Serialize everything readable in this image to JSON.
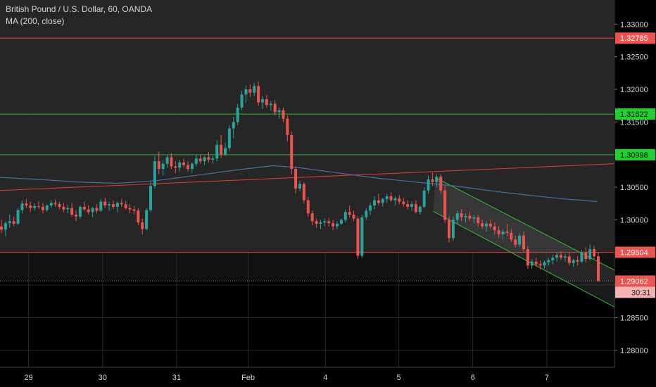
{
  "header": {
    "title": "British Pound / U.S. Dollar, 60, OANDA",
    "indicator": "MA (200, close)"
  },
  "colors": {
    "background": "#000000",
    "grid": "#2a2a2a",
    "up": "#26a69a",
    "down": "#ef5350",
    "red_line": "#e53935",
    "green_line": "#2ebd2e",
    "ma": "#4a6fa5",
    "axis_text": "#d1d4dc",
    "label_red_bg": "#ef5350",
    "label_green_bg": "#1fd12f"
  },
  "chart_data": {
    "type": "candlestick",
    "symbol": "British Pound / U.S. Dollar, 60, OANDA",
    "y_ticks": [
      "1.33000",
      "1.32500",
      "1.32000",
      "1.31500",
      "1.31000",
      "1.30500",
      "1.30000",
      "1.29500",
      "1.29000",
      "1.28500",
      "1.28000"
    ],
    "y_tick_values": [
      1.33,
      1.325,
      1.32,
      1.315,
      1.31,
      1.305,
      1.3,
      1.295,
      1.29,
      1.285,
      1.28
    ],
    "ylim": [
      1.2774,
      1.3337
    ],
    "x_ticks": [
      {
        "label": "29",
        "t": 44
      },
      {
        "label": "30",
        "t": 158
      },
      {
        "label": "31",
        "t": 272
      },
      {
        "label": "Feb",
        "t": 382
      },
      {
        "label": "4",
        "t": 501
      },
      {
        "label": "5",
        "t": 614
      },
      {
        "label": "6",
        "t": 728
      },
      {
        "label": "7",
        "t": 842
      }
    ],
    "xlim": [
      0,
      945
    ],
    "horizontal_lines": [
      {
        "value": 1.32785,
        "label": "1.32785",
        "color": "red"
      },
      {
        "value": 1.31622,
        "label": "1.31622",
        "color": "green"
      },
      {
        "value": 1.30998,
        "label": "1.30998",
        "color": "green"
      },
      {
        "value": 1.29504,
        "label": "1.29504",
        "color": "red"
      }
    ],
    "current_price": {
      "value": 1.29062,
      "label": "1.29062",
      "countdown": "30:31"
    },
    "trendline": {
      "color": "red",
      "points": [
        [
          0,
          1.3045
        ],
        [
          945,
          1.3086
        ]
      ]
    },
    "channel": {
      "color": "green",
      "upper": [
        [
          670,
          1.3065
        ],
        [
          981,
          1.2905
        ]
      ],
      "lower": [
        [
          667,
          1.3013
        ],
        [
          981,
          1.2848
        ]
      ]
    },
    "ma200": [
      [
        0,
        1.3065
      ],
      [
        60,
        1.3062
      ],
      [
        120,
        1.3058
      ],
      [
        180,
        1.3056
      ],
      [
        240,
        1.306
      ],
      [
        300,
        1.3068
      ],
      [
        360,
        1.3076
      ],
      [
        420,
        1.3083
      ],
      [
        460,
        1.308
      ],
      [
        520,
        1.3072
      ],
      [
        580,
        1.3064
      ],
      [
        640,
        1.3058
      ],
      [
        700,
        1.3052
      ],
      [
        760,
        1.3044
      ],
      [
        820,
        1.3037
      ],
      [
        870,
        1.3032
      ],
      [
        920,
        1.3028
      ]
    ],
    "ohlc": [
      [
        1.299,
        1.3,
        1.298,
        1.2985
      ],
      [
        1.2985,
        1.2998,
        1.2975,
        1.2995
      ],
      [
        1.2995,
        1.3008,
        1.2988,
        1.2998
      ],
      [
        1.2998,
        1.3005,
        1.299,
        1.2994
      ],
      [
        1.2994,
        1.3018,
        1.2992,
        1.3015
      ],
      [
        1.3015,
        1.303,
        1.301,
        1.3025
      ],
      [
        1.3025,
        1.3032,
        1.3018,
        1.3022
      ],
      [
        1.3022,
        1.3028,
        1.3012,
        1.3018
      ],
      [
        1.3018,
        1.3025,
        1.3014,
        1.3021
      ],
      [
        1.3021,
        1.3029,
        1.3017,
        1.302
      ],
      [
        1.302,
        1.3026,
        1.301,
        1.3015
      ],
      [
        1.3015,
        1.3024,
        1.3012,
        1.3022
      ],
      [
        1.3022,
        1.303,
        1.3018,
        1.3026
      ],
      [
        1.3026,
        1.3031,
        1.302,
        1.3024
      ],
      [
        1.3024,
        1.3028,
        1.3016,
        1.302
      ],
      [
        1.302,
        1.3026,
        1.3012,
        1.3016
      ],
      [
        1.3016,
        1.3023,
        1.301,
        1.3018
      ],
      [
        1.3018,
        1.3026,
        1.3005,
        1.3008
      ],
      [
        1.3008,
        1.3015,
        1.2998,
        1.3005
      ],
      [
        1.3005,
        1.3022,
        1.3002,
        1.302
      ],
      [
        1.302,
        1.3028,
        1.3014,
        1.3016
      ],
      [
        1.3016,
        1.3022,
        1.3008,
        1.3012
      ],
      [
        1.3012,
        1.302,
        1.3004,
        1.3018
      ],
      [
        1.3018,
        1.3024,
        1.301,
        1.3014
      ],
      [
        1.3014,
        1.3032,
        1.3012,
        1.3028
      ],
      [
        1.3028,
        1.3034,
        1.3018,
        1.3022
      ],
      [
        1.3022,
        1.3028,
        1.3014,
        1.3024
      ],
      [
        1.3024,
        1.303,
        1.3016,
        1.302
      ],
      [
        1.302,
        1.3028,
        1.3012,
        1.3026
      ],
      [
        1.3026,
        1.3032,
        1.302,
        1.3024
      ],
      [
        1.3024,
        1.3029,
        1.3016,
        1.3018
      ],
      [
        1.3018,
        1.3024,
        1.301,
        1.3016
      ],
      [
        1.3016,
        1.3022,
        1.3008,
        1.3014
      ],
      [
        1.3014,
        1.3018,
        1.2992,
        1.2996
      ],
      [
        1.2996,
        1.3002,
        1.2978,
        1.2986
      ],
      [
        1.2986,
        1.3018,
        1.2984,
        1.3015
      ],
      [
        1.3015,
        1.3058,
        1.3012,
        1.3052
      ],
      [
        1.3052,
        1.3098,
        1.3048,
        1.309
      ],
      [
        1.309,
        1.3105,
        1.307,
        1.3078
      ],
      [
        1.3078,
        1.3092,
        1.3068,
        1.3086
      ],
      [
        1.3086,
        1.31,
        1.308,
        1.3096
      ],
      [
        1.3096,
        1.3102,
        1.3078,
        1.3082
      ],
      [
        1.3082,
        1.309,
        1.3072,
        1.308
      ],
      [
        1.308,
        1.3092,
        1.3074,
        1.3088
      ],
      [
        1.3088,
        1.3094,
        1.308,
        1.3084
      ],
      [
        1.3084,
        1.309,
        1.3074,
        1.3078
      ],
      [
        1.3078,
        1.3088,
        1.3072,
        1.3086
      ],
      [
        1.3086,
        1.31,
        1.3082,
        1.3094
      ],
      [
        1.3094,
        1.31,
        1.3086,
        1.309
      ],
      [
        1.309,
        1.3098,
        1.3084,
        1.3096
      ],
      [
        1.3096,
        1.3104,
        1.3088,
        1.3092
      ],
      [
        1.3092,
        1.3098,
        1.3086,
        1.3094
      ],
      [
        1.3094,
        1.3122,
        1.309,
        1.3115
      ],
      [
        1.3115,
        1.313,
        1.3095,
        1.31
      ],
      [
        1.31,
        1.3118,
        1.3098,
        1.311
      ],
      [
        1.311,
        1.3145,
        1.3105,
        1.314
      ],
      [
        1.314,
        1.3158,
        1.3125,
        1.315
      ],
      [
        1.315,
        1.3178,
        1.3145,
        1.3172
      ],
      [
        1.3172,
        1.3198,
        1.3168,
        1.3192
      ],
      [
        1.3192,
        1.3206,
        1.318,
        1.32
      ],
      [
        1.32,
        1.3208,
        1.3188,
        1.3195
      ],
      [
        1.3195,
        1.321,
        1.319,
        1.3205
      ],
      [
        1.3205,
        1.3212,
        1.3175,
        1.318
      ],
      [
        1.318,
        1.319,
        1.317,
        1.3185
      ],
      [
        1.3185,
        1.3192,
        1.3172,
        1.3176
      ],
      [
        1.3176,
        1.3182,
        1.3168,
        1.3178
      ],
      [
        1.3178,
        1.3184,
        1.316,
        1.3165
      ],
      [
        1.3165,
        1.3172,
        1.3155,
        1.3168
      ],
      [
        1.3168,
        1.3172,
        1.315,
        1.3155
      ],
      [
        1.3155,
        1.316,
        1.312,
        1.313
      ],
      [
        1.313,
        1.3135,
        1.307,
        1.3078
      ],
      [
        1.3078,
        1.3082,
        1.304,
        1.3048
      ],
      [
        1.3048,
        1.306,
        1.3044,
        1.3055
      ],
      [
        1.3055,
        1.3058,
        1.3025,
        1.303
      ],
      [
        1.303,
        1.3035,
        1.3005,
        1.301
      ],
      [
        1.301,
        1.3014,
        1.2992,
        1.2998
      ],
      [
        1.2998,
        1.3002,
        1.2988,
        1.2994
      ],
      [
        1.2994,
        1.3,
        1.2986,
        1.2996
      ],
      [
        1.2996,
        1.3002,
        1.299,
        1.2998
      ],
      [
        1.2998,
        1.3003,
        1.299,
        1.2995
      ],
      [
        1.2995,
        1.3,
        1.2984,
        1.299
      ],
      [
        1.299,
        1.2998,
        1.2986,
        1.2994
      ],
      [
        1.2994,
        1.3002,
        1.2992,
        1.3
      ],
      [
        1.3,
        1.3016,
        1.2996,
        1.3012
      ],
      [
        1.3012,
        1.3022,
        1.3004,
        1.3008
      ],
      [
        1.3008,
        1.3014,
        1.2998,
        1.3002
      ],
      [
        1.3002,
        1.3006,
        1.294,
        1.2945
      ],
      [
        1.2945,
        1.3008,
        1.2942,
        1.3004
      ],
      [
        1.3004,
        1.3018,
        1.3,
        1.3014
      ],
      [
        1.3014,
        1.3026,
        1.3008,
        1.3022
      ],
      [
        1.3022,
        1.3036,
        1.3016,
        1.303
      ],
      [
        1.303,
        1.304,
        1.3022,
        1.3026
      ],
      [
        1.3026,
        1.3034,
        1.302,
        1.3032
      ],
      [
        1.3032,
        1.304,
        1.3026,
        1.3036
      ],
      [
        1.3036,
        1.3042,
        1.3028,
        1.303
      ],
      [
        1.303,
        1.3036,
        1.3022,
        1.3033
      ],
      [
        1.3033,
        1.3038,
        1.3024,
        1.3028
      ],
      [
        1.3028,
        1.3034,
        1.302,
        1.3024
      ],
      [
        1.3024,
        1.303,
        1.3016,
        1.302
      ],
      [
        1.302,
        1.3028,
        1.3014,
        1.3024
      ],
      [
        1.3024,
        1.303,
        1.301,
        1.3012
      ],
      [
        1.3012,
        1.3022,
        1.3008,
        1.302
      ],
      [
        1.302,
        1.305,
        1.3018,
        1.3045
      ],
      [
        1.3045,
        1.3068,
        1.304,
        1.3062
      ],
      [
        1.3062,
        1.3072,
        1.3052,
        1.3058
      ],
      [
        1.3058,
        1.307,
        1.305,
        1.3066
      ],
      [
        1.3066,
        1.307,
        1.304,
        1.3045
      ],
      [
        1.3045,
        1.3052,
        1.2995,
        1.3
      ],
      [
        1.3,
        1.3005,
        1.2965,
        1.2972
      ],
      [
        1.2972,
        1.3005,
        1.2968,
        1.3
      ],
      [
        1.3,
        1.3014,
        1.2994,
        1.301
      ],
      [
        1.301,
        1.3016,
        1.2998,
        1.3004
      ],
      [
        1.3004,
        1.301,
        1.2996,
        1.3006
      ],
      [
        1.3006,
        1.3012,
        1.2998,
        1.3002
      ],
      [
        1.3002,
        1.3008,
        1.2994,
        1.3004
      ],
      [
        1.3004,
        1.3008,
        1.299,
        1.2995
      ],
      [
        1.2995,
        1.3,
        1.2986,
        1.299
      ],
      [
        1.299,
        1.2998,
        1.2982,
        1.2994
      ],
      [
        1.2994,
        1.3,
        1.2986,
        1.299
      ],
      [
        1.299,
        1.2996,
        1.2978,
        1.2984
      ],
      [
        1.2984,
        1.299,
        1.2972,
        1.2978
      ],
      [
        1.2978,
        1.2986,
        1.297,
        1.2982
      ],
      [
        1.2982,
        1.2994,
        1.2975,
        1.298
      ],
      [
        1.298,
        1.2986,
        1.2966,
        1.297
      ],
      [
        1.297,
        1.2976,
        1.2958,
        1.2962
      ],
      [
        1.2962,
        1.298,
        1.2958,
        1.2976
      ],
      [
        1.2976,
        1.2982,
        1.295,
        1.2955
      ],
      [
        1.2955,
        1.296,
        1.2925,
        1.293
      ],
      [
        1.293,
        1.294,
        1.2925,
        1.2936
      ],
      [
        1.2936,
        1.2942,
        1.2928,
        1.2932
      ],
      [
        1.2932,
        1.2938,
        1.2924,
        1.293
      ],
      [
        1.293,
        1.2938,
        1.2926,
        1.2935
      ],
      [
        1.2935,
        1.2942,
        1.293,
        1.2938
      ],
      [
        1.2938,
        1.2946,
        1.2932,
        1.2942
      ],
      [
        1.2942,
        1.295,
        1.2936,
        1.2946
      ],
      [
        1.2946,
        1.2952,
        1.2938,
        1.2942
      ],
      [
        1.2942,
        1.2948,
        1.2936,
        1.2944
      ],
      [
        1.2944,
        1.295,
        1.293,
        1.2934
      ],
      [
        1.2934,
        1.294,
        1.2928,
        1.2938
      ],
      [
        1.2938,
        1.2944,
        1.293,
        1.2936
      ],
      [
        1.2936,
        1.2954,
        1.2934,
        1.295
      ],
      [
        1.295,
        1.2958,
        1.2935,
        1.294
      ],
      [
        1.294,
        1.2962,
        1.2938,
        1.2955
      ],
      [
        1.2955,
        1.296,
        1.294,
        1.2944
      ],
      [
        1.2944,
        1.295,
        1.2905,
        1.2906
      ]
    ]
  }
}
